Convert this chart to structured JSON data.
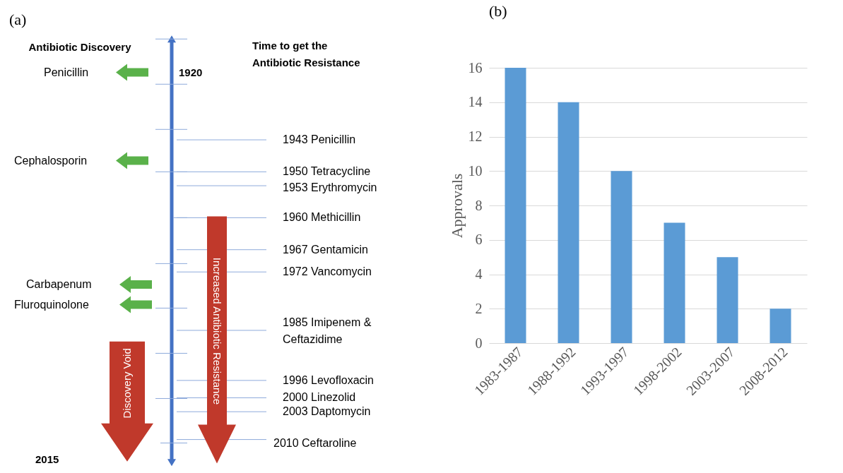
{
  "chart_data": [
    {
      "type": "other",
      "title": "(a)",
      "annotations": [
        "Antibiotic Discovery",
        "Time to get the\nAntibiotic Resistance",
        "1920",
        "2015",
        "Penicillin",
        "Cephalosporin",
        "Carbapenum",
        "Fluroquinolone",
        "Discovery Void",
        "Increased Antibiotic Resistance",
        "1943 Penicillin",
        "1950 Tetracycline",
        "1953 Erythromycin",
        "1960 Methicillin",
        "1967 Gentamicin",
        "1972 Vancomycin",
        "1985 Imipenem &\nCeftazidime",
        "1996 Levofloxacin",
        "2000 Linezolid",
        "2003 Daptomycin",
        "2010 Ceftaroline"
      ]
    },
    {
      "type": "bar",
      "title": "(b)",
      "ylabel": "Approvals",
      "categories": [
        "1983-1987",
        "1988-1992",
        "1993-1997",
        "1998-2002",
        "2003-2007",
        "2008-2012"
      ],
      "values": [
        16,
        14,
        10,
        7,
        5,
        2
      ],
      "color": "#5b9bd5",
      "ylim": [
        0,
        16
      ],
      "yticks": [
        0,
        2,
        4,
        6,
        8,
        10,
        12,
        14,
        16
      ],
      "grid": "y",
      "legend": false
    }
  ]
}
